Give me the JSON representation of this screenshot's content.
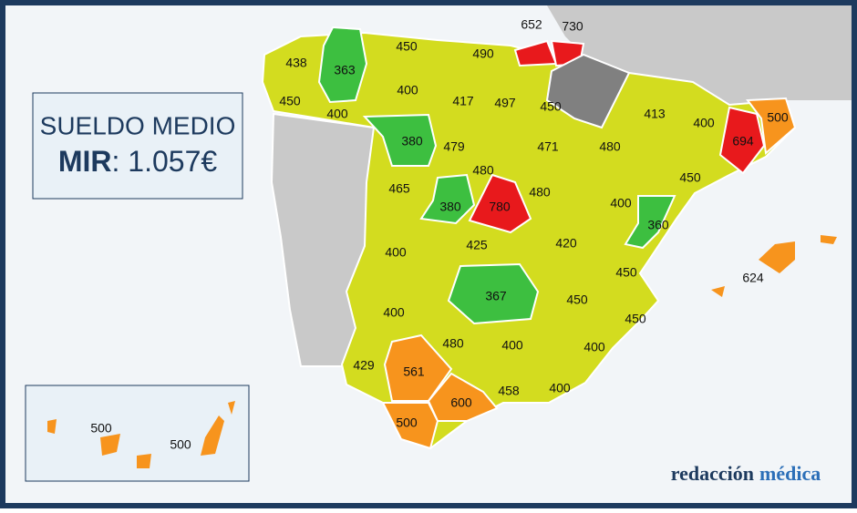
{
  "header": {
    "title": "SUELDO MEDIO",
    "line2_bold": "MIR",
    "line2_rest": ": 1.057€"
  },
  "brand": {
    "part1": "redacción",
    "part2": "médica"
  },
  "regions": [
    438,
    363,
    450,
    490,
    652,
    730,
    450,
    400,
    417,
    497,
    450,
    413,
    400,
    500,
    400,
    380,
    479,
    471,
    480,
    694,
    480,
    450,
    465,
    380,
    780,
    480,
    400,
    360,
    425,
    420,
    400,
    450,
    624,
    367,
    450,
    400,
    450,
    480,
    400,
    400,
    429,
    561,
    458,
    400,
    600,
    500,
    500,
    500
  ]
}
